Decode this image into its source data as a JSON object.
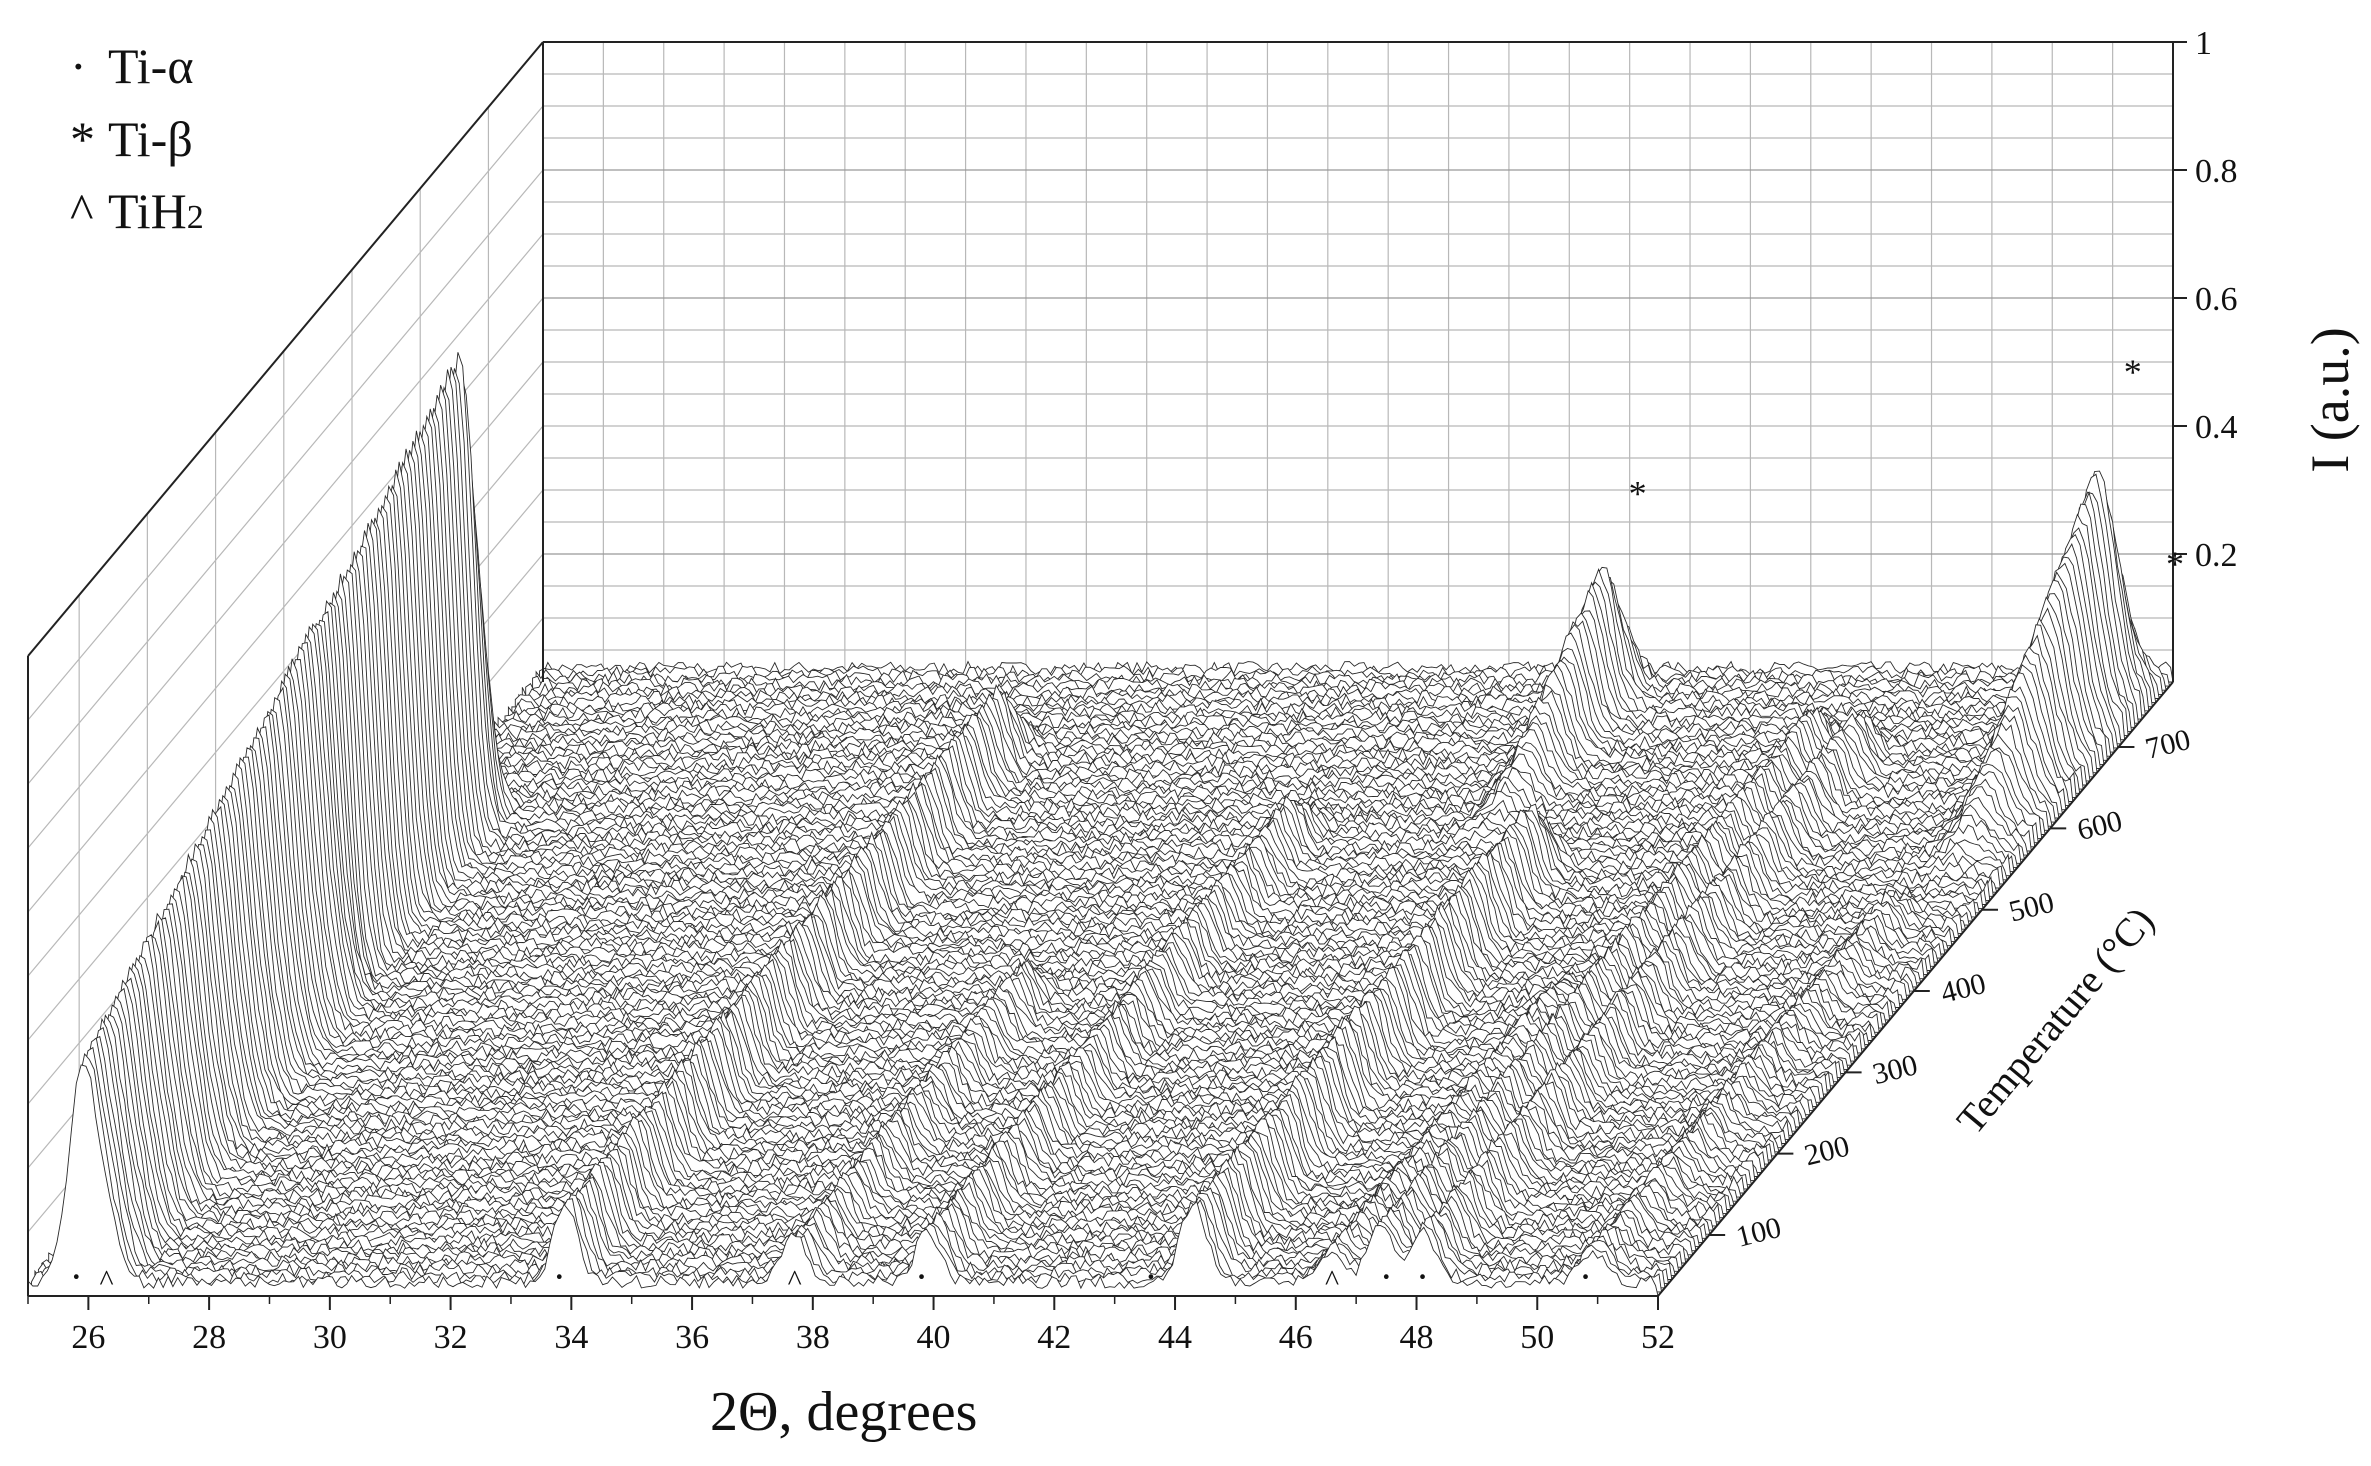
{
  "chart_data": {
    "type": "waterfall-3d",
    "xlabel": "2Θ, degrees",
    "ylabel": "Temperature (°C)",
    "zlabel": "I (a.u.)",
    "x_ticks": [
      "26",
      "28",
      "30",
      "32",
      "34",
      "36",
      "38",
      "40",
      "42",
      "44",
      "46",
      "48",
      "50",
      "52"
    ],
    "y_ticks": [
      "100",
      "200",
      "300",
      "400",
      "500",
      "600",
      "700"
    ],
    "z_ticks": [
      "0.2",
      "0.4",
      "0.6",
      "0.8",
      "1"
    ],
    "xlim": [
      25,
      52
    ],
    "ylim": [
      25,
      780
    ],
    "zlim": [
      0,
      1
    ],
    "grid": true,
    "legend": [
      {
        "marker": "·",
        "label": "Ti-α"
      },
      {
        "marker": "*",
        "label": "Ti-β"
      },
      {
        "marker": "^",
        "label": "TiH",
        "subscript": "2"
      }
    ],
    "peaks": [
      {
        "name": "TiH2",
        "x": 25.9,
        "amp_low": 0.33,
        "amp_high": 0.78,
        "t_start": 25,
        "t_end": 620,
        "width": 0.22
      },
      {
        "name": "Ti-alpha",
        "x": 26.3,
        "amp_low": 0.1,
        "amp_high": 0.1,
        "t_start": 25,
        "t_end": 400,
        "width": 0.2
      },
      {
        "name": "Ti-alpha",
        "x": 33.9,
        "amp_low": 0.12,
        "amp_high": 0.12,
        "t_start": 25,
        "t_end": 700,
        "width": 0.2
      },
      {
        "name": "TiH2",
        "x": 37.7,
        "amp_low": 0.07,
        "amp_high": 0.07,
        "t_start": 25,
        "t_end": 400,
        "width": 0.2
      },
      {
        "name": "Ti-alpha",
        "x": 39.9,
        "amp_low": 0.08,
        "amp_high": 0.08,
        "t_start": 25,
        "t_end": 600,
        "width": 0.2
      },
      {
        "name": "Ti-beta",
        "x": 43.0,
        "amp_low": 0.0,
        "amp_high": 0.26,
        "t_start": 560,
        "t_end": 780,
        "width": 0.25
      },
      {
        "name": "Ti-alpha",
        "x": 44.3,
        "amp_low": 0.12,
        "amp_high": 0.12,
        "t_start": 25,
        "t_end": 560,
        "width": 0.22
      },
      {
        "name": "TiH2",
        "x": 46.6,
        "amp_low": 0.05,
        "amp_high": 0.05,
        "t_start": 25,
        "t_end": 400,
        "width": 0.2
      },
      {
        "name": "Ti-alpha",
        "x": 47.4,
        "amp_low": 0.09,
        "amp_high": 0.09,
        "t_start": 25,
        "t_end": 700,
        "width": 0.2
      },
      {
        "name": "Ti-alpha",
        "x": 48.1,
        "amp_low": 0.08,
        "amp_high": 0.08,
        "t_start": 25,
        "t_end": 700,
        "width": 0.2
      },
      {
        "name": "Ti-beta",
        "x": 51.2,
        "amp_low": 0.0,
        "amp_high": 0.43,
        "t_start": 520,
        "t_end": 780,
        "width": 0.3
      },
      {
        "name": "Ti-alpha",
        "x": 50.9,
        "amp_low": 0.05,
        "amp_high": 0.05,
        "t_start": 25,
        "t_end": 500,
        "width": 0.2
      }
    ],
    "front_markers": [
      {
        "x": 25.8,
        "symbol": "·"
      },
      {
        "x": 26.3,
        "symbol": "^"
      },
      {
        "x": 33.8,
        "symbol": "·"
      },
      {
        "x": 37.7,
        "symbol": "^"
      },
      {
        "x": 39.8,
        "symbol": "·"
      },
      {
        "x": 43.6,
        "symbol": "·"
      },
      {
        "x": 46.6,
        "symbol": "^"
      },
      {
        "x": 47.5,
        "symbol": "·"
      },
      {
        "x": 48.1,
        "symbol": "·"
      },
      {
        "x": 50.8,
        "symbol": "·"
      }
    ],
    "star_markers": [
      {
        "x": 43.0,
        "t": 780,
        "z": 0.26,
        "symbol": "*"
      },
      {
        "x": 51.2,
        "t": 780,
        "z": 0.45,
        "symbol": "*"
      },
      {
        "x": 51.9,
        "t": 780,
        "z": 0.15,
        "symbol": "*"
      }
    ]
  }
}
